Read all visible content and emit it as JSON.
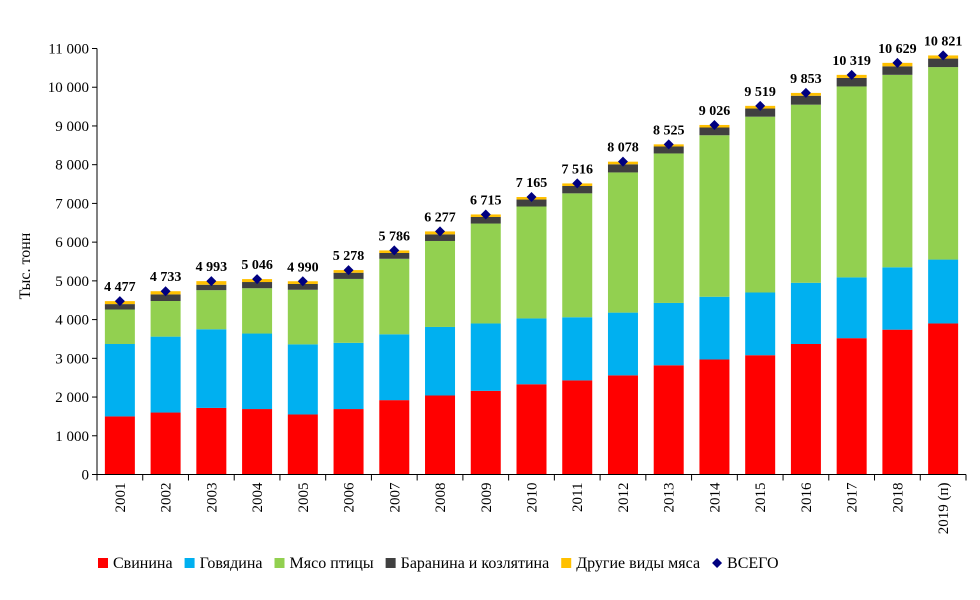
{
  "chart_data": {
    "type": "bar",
    "stacked": true,
    "title": "",
    "xlabel": "",
    "ylabel": "Тыс. тонн",
    "ylim": [
      0,
      11000
    ],
    "yticks": [
      0,
      1000,
      2000,
      3000,
      4000,
      5000,
      6000,
      7000,
      8000,
      9000,
      10000,
      11000
    ],
    "ytick_labels": [
      "0",
      "1 000",
      "2 000",
      "3 000",
      "4 000",
      "5 000",
      "6 000",
      "7 000",
      "8 000",
      "9 000",
      "10 000",
      "11 000"
    ],
    "grid": false,
    "legend_position": "bottom",
    "categories": [
      "2001",
      "2002",
      "2003",
      "2004",
      "2005",
      "2006",
      "2007",
      "2008",
      "2009",
      "2010",
      "2011",
      "2012",
      "2013",
      "2014",
      "2015",
      "2016",
      "2017",
      "2018",
      "2019 (п)"
    ],
    "series": [
      {
        "name": "Свинина",
        "color": "#ff0000",
        "values": [
          1500,
          1600,
          1720,
          1690,
          1550,
          1690,
          1920,
          2040,
          2160,
          2330,
          2430,
          2560,
          2820,
          2970,
          3080,
          3370,
          3520,
          3740,
          3900
        ]
      },
      {
        "name": "Говядина",
        "color": "#00b0f0",
        "values": [
          1870,
          1960,
          2030,
          1950,
          1810,
          1710,
          1700,
          1770,
          1740,
          1700,
          1630,
          1620,
          1610,
          1620,
          1620,
          1580,
          1570,
          1610,
          1650
        ]
      },
      {
        "name": "Мясо птицы",
        "color": "#92d050",
        "values": [
          890,
          920,
          1010,
          1170,
          1410,
          1650,
          1950,
          2220,
          2580,
          2890,
          3200,
          3620,
          3860,
          4170,
          4540,
          4600,
          4930,
          4970,
          4970
        ]
      },
      {
        "name": "Баранина и козлятина",
        "color": "#404040",
        "values": [
          140,
          170,
          140,
          160,
          150,
          160,
          150,
          170,
          170,
          180,
          190,
          210,
          180,
          200,
          210,
          230,
          220,
          220,
          220
        ]
      },
      {
        "name": "Другие виды мяса",
        "color": "#ffc000",
        "values": [
          77,
          83,
          93,
          76,
          70,
          68,
          66,
          77,
          65,
          65,
          66,
          68,
          55,
          66,
          69,
          73,
          79,
          89,
          81
        ]
      }
    ],
    "total": {
      "name": "ВСЕГО",
      "color": "#000080",
      "values": [
        4477,
        4733,
        4993,
        5046,
        4990,
        5278,
        5786,
        6277,
        6715,
        7165,
        7516,
        8078,
        8525,
        9026,
        9519,
        9853,
        10319,
        10629,
        10821
      ],
      "labels": [
        "4 477",
        "4 733",
        "4 993",
        "5 046",
        "4 990",
        "5 278",
        "5 786",
        "6 277",
        "6 715",
        "7 165",
        "7 516",
        "8 078",
        "8 525",
        "9 026",
        "9 519",
        "9 853",
        "10 319",
        "10 629",
        "10 821"
      ]
    }
  }
}
